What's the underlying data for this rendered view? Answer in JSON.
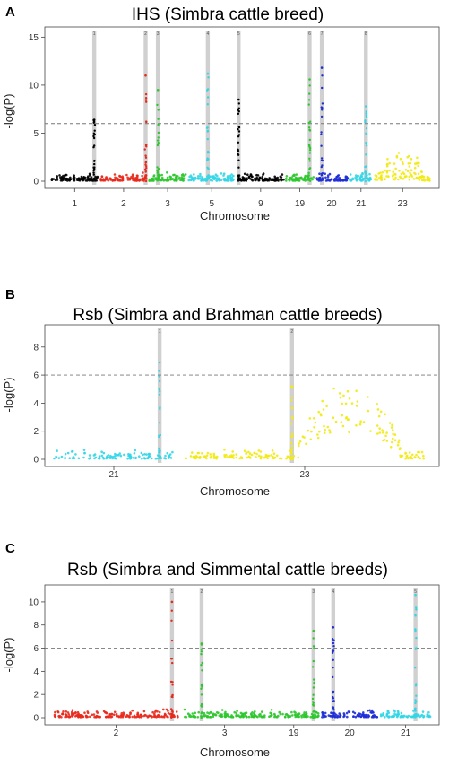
{
  "colors": {
    "black": "#000000",
    "red": "#e8291c",
    "green": "#2ec72e",
    "cyan": "#33d6e6",
    "blue": "#1f2ed6",
    "yellow": "#f2ea12",
    "threshold": "#777777",
    "highlight": "#c8c8c8"
  },
  "chart_data": [
    {
      "panel_label": "A",
      "type": "scatter",
      "title": "IHS (Simbra cattle breed)",
      "xlabel": "Chromosome",
      "ylabel": "-log(P)",
      "ylim": [
        0,
        15.5
      ],
      "yticks": [
        0,
        5,
        10,
        15
      ],
      "threshold": 6,
      "chromosomes": [
        {
          "label": "1",
          "color": "black",
          "span": [
            0.0,
            1.0
          ]
        },
        {
          "label": "2",
          "color": "red",
          "span": [
            1.0,
            2.0
          ]
        },
        {
          "label": "3",
          "color": "green",
          "span": [
            2.0,
            2.8
          ]
        },
        {
          "label": "5",
          "color": "cyan",
          "span": [
            2.8,
            3.8
          ]
        },
        {
          "label": "9",
          "color": "black",
          "span": [
            3.8,
            4.8
          ]
        },
        {
          "label": "19",
          "color": "green",
          "span": [
            4.8,
            5.4
          ]
        },
        {
          "label": "20",
          "color": "blue",
          "span": [
            5.4,
            6.1
          ]
        },
        {
          "label": "21",
          "color": "cyan",
          "span": [
            6.1,
            6.6
          ]
        },
        {
          "label": "23",
          "color": "yellow",
          "span": [
            6.6,
            7.8
          ]
        }
      ],
      "peaks": [
        {
          "label": "1",
          "x": 0.9,
          "ymax": 6.4
        },
        {
          "label": "2",
          "x": 1.95,
          "ymax": 11.0
        },
        {
          "label": "3",
          "x": 2.2,
          "ymax": 9.5
        },
        {
          "label": "4",
          "x": 3.22,
          "ymax": 11.2
        },
        {
          "label": "5",
          "x": 3.85,
          "ymax": 8.5
        },
        {
          "label": "6",
          "x": 5.3,
          "ymax": 10.6
        },
        {
          "label": "7",
          "x": 5.55,
          "ymax": 11.8
        },
        {
          "label": "8",
          "x": 6.45,
          "ymax": 7.8
        }
      ]
    },
    {
      "panel_label": "B",
      "type": "scatter",
      "title": "Rsb (Simbra and Brahman cattle breeds)",
      "xlabel": "Chromosome",
      "ylabel": "-log(P)",
      "ylim": [
        0,
        9.2
      ],
      "yticks": [
        0,
        2,
        4,
        6,
        8
      ],
      "threshold": 6,
      "chromosomes": [
        {
          "label": "21",
          "color": "cyan",
          "span": [
            0.0,
            1.0
          ]
        },
        {
          "label": "23",
          "color": "yellow",
          "span": [
            1.0,
            3.0
          ]
        }
      ],
      "peaks": [
        {
          "label": "1",
          "x": 0.86,
          "ymax": 6.9
        },
        {
          "label": "2",
          "x": 1.9,
          "ymax": 5.2
        }
      ]
    },
    {
      "panel_label": "C",
      "type": "scatter",
      "title": "Rsb (Simbra and Simmental cattle breeds)",
      "xlabel": "Chromosome",
      "ylabel": "-log(P)",
      "ylim": [
        0,
        11
      ],
      "yticks": [
        0,
        2,
        4,
        6,
        8,
        10
      ],
      "threshold": 6,
      "chromosomes": [
        {
          "label": "2",
          "color": "red",
          "span": [
            0.0,
            2.0
          ]
        },
        {
          "label": "3",
          "color": "green",
          "span": [
            2.0,
            3.3
          ]
        },
        {
          "label": "19",
          "color": "green",
          "span": [
            3.3,
            4.1
          ]
        },
        {
          "label": "20",
          "color": "blue",
          "span": [
            4.1,
            5.0
          ]
        },
        {
          "label": "21",
          "color": "cyan",
          "span": [
            5.0,
            5.8
          ]
        }
      ],
      "peaks": [
        {
          "label": "1",
          "x": 1.85,
          "ymax": 10.0
        },
        {
          "label": "2",
          "x": 2.3,
          "ymax": 6.4
        },
        {
          "label": "3",
          "x": 4.0,
          "ymax": 7.5
        },
        {
          "label": "4",
          "x": 4.3,
          "ymax": 7.8
        },
        {
          "label": "5",
          "x": 5.55,
          "ymax": 10.6
        }
      ]
    }
  ]
}
